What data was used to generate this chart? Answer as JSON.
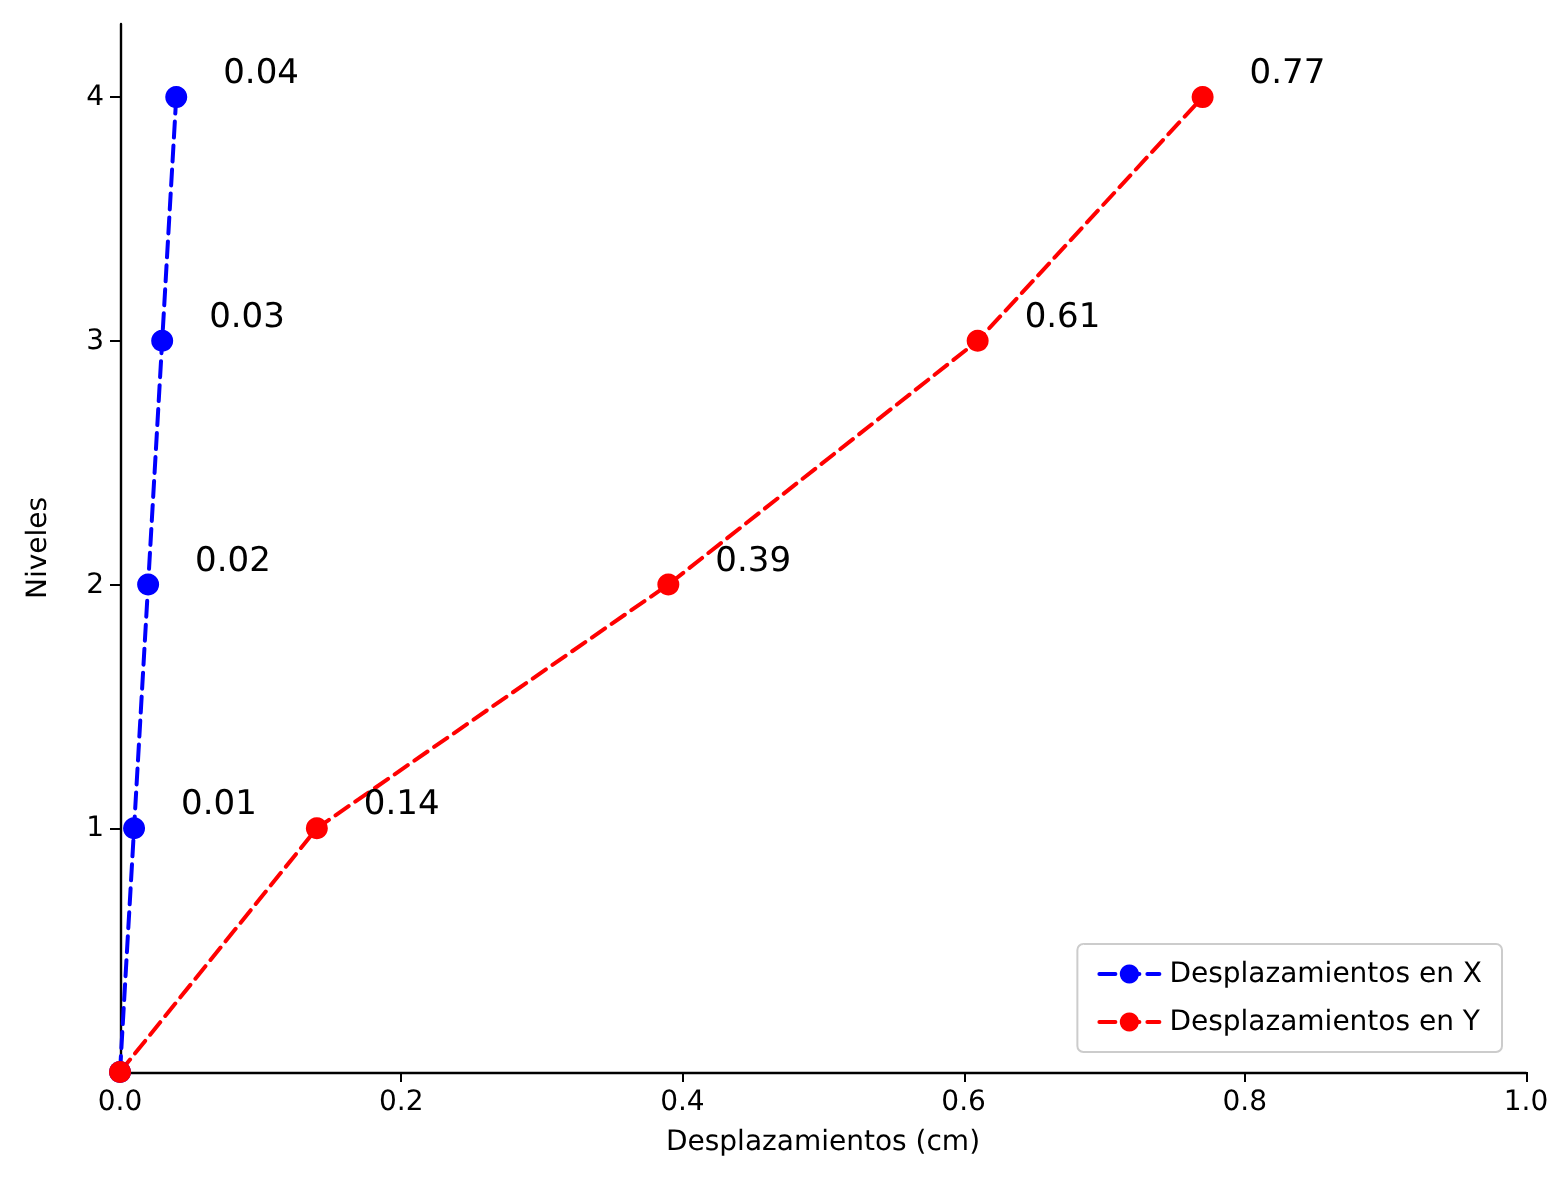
{
  "chart_data": {
    "type": "line",
    "orientation": "horizontal",
    "xlabel": "Desplazamientos (cm)",
    "ylabel": "Niveles",
    "xlim": [
      0,
      1
    ],
    "xticks": [
      {
        "value": 0,
        "label": "0.0"
      },
      {
        "value": 0.2,
        "label": "0.2"
      },
      {
        "value": 0.4,
        "label": "0.4"
      },
      {
        "value": 0.6,
        "label": "0.6"
      },
      {
        "value": 0.8,
        "label": "0.8"
      },
      {
        "value": 1,
        "label": "1.0"
      }
    ],
    "ylim": [
      0,
      4.3
    ],
    "yticks": [
      1,
      2,
      3,
      4
    ],
    "series": [
      {
        "name": "Desplazamientos en X",
        "color": "#0000ff",
        "x": [
          0,
          1,
          2,
          3,
          4
        ],
        "values": [
          0,
          0.01,
          0.02,
          0.03,
          0.04
        ],
        "value_labels": [
          null,
          "0.01",
          "0.02",
          "0.03",
          "0.04"
        ]
      },
      {
        "name": "Desplazamientos en Y",
        "color": "#ff0000",
        "x": [
          0,
          1,
          2,
          3,
          4
        ],
        "values": [
          0,
          0.14,
          0.39,
          0.61,
          0.77
        ],
        "value_labels": [
          null,
          "0.14",
          "0.39",
          "0.61",
          "0.77"
        ]
      }
    ],
    "legend": "bottom right",
    "marker": "circle",
    "line_style": "dashed",
    "grid": false
  }
}
